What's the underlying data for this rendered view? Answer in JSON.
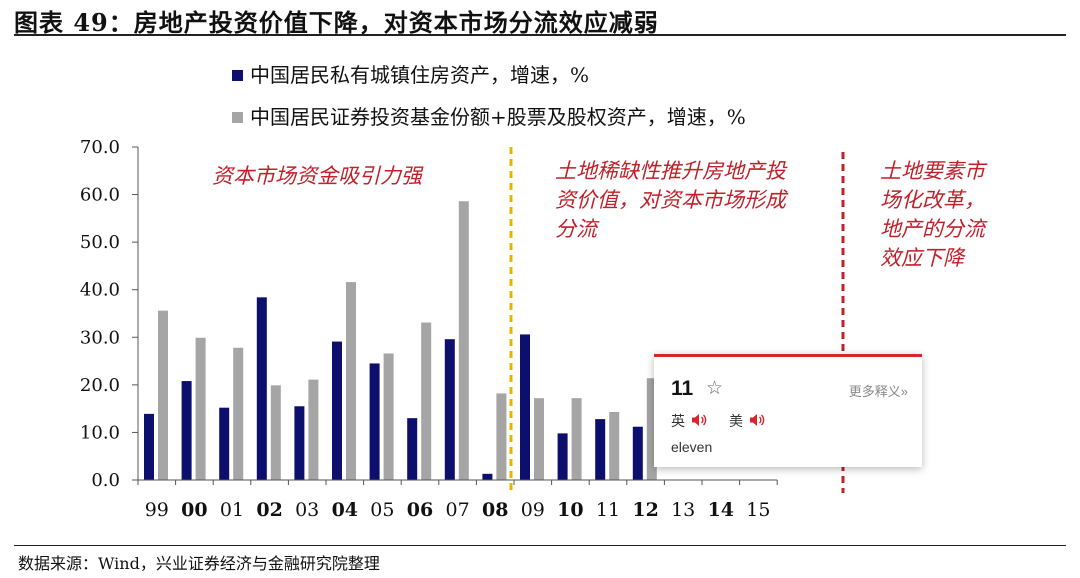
{
  "figure": {
    "title": "图表 49：房地产投资价值下降，对资本市场分流效应减弱",
    "source": "数据来源：Wind，兴业证券经济与金融研究院整理"
  },
  "colors": {
    "series1": "#0d0f6e",
    "series2": "#a5a5a5",
    "annotation": "#c0202a",
    "divider1": "#e8b400",
    "divider2": "#c0202a"
  },
  "chart_data": {
    "type": "bar",
    "categories": [
      "99",
      "00",
      "01",
      "02",
      "03",
      "04",
      "05",
      "06",
      "07",
      "08",
      "09",
      "10",
      "11",
      "12",
      "13",
      "14",
      "15"
    ],
    "series": [
      {
        "name": "中国居民私有城镇住房资产，增速，%",
        "values": [
          13.9,
          20.8,
          15.2,
          38.4,
          15.5,
          29.1,
          24.5,
          13.0,
          29.6,
          1.3,
          30.6,
          9.8,
          12.8,
          11.2,
          null,
          null,
          null
        ]
      },
      {
        "name": "中国居民证券投资基金份额+股票及股权资产，增速，%",
        "values": [
          35.6,
          29.9,
          27.8,
          19.9,
          21.1,
          41.6,
          26.6,
          33.1,
          58.6,
          18.2,
          17.2,
          17.2,
          14.3,
          21.4,
          null,
          null,
          null
        ]
      }
    ],
    "y_ticks": [
      "70.0",
      "60.0",
      "50.0",
      "40.0",
      "30.0",
      "20.0",
      "10.0",
      "0.0"
    ],
    "ylim": [
      0,
      70
    ],
    "xlabel": "",
    "ylabel": "",
    "grid": false,
    "legend_position": "top",
    "annotations": [
      {
        "lines": [
          "资本市场资金吸引力强"
        ]
      },
      {
        "lines": [
          "土地稀缺性推升房地产投",
          "资价值，对资本市场形成",
          "分流"
        ]
      },
      {
        "lines": [
          "土地要素市",
          "场化改革，",
          "地产的分流",
          "效应下降"
        ]
      }
    ],
    "dividers": [
      {
        "after_category": "08",
        "style": "dashed",
        "color": "#e8b400"
      },
      {
        "after_category": "15",
        "style": "dashed",
        "color": "#c0202a"
      }
    ]
  },
  "popup": {
    "word": "11",
    "star": "☆",
    "more": "更多释义»",
    "uk_label": "英",
    "us_label": "美",
    "definition": "eleven"
  }
}
